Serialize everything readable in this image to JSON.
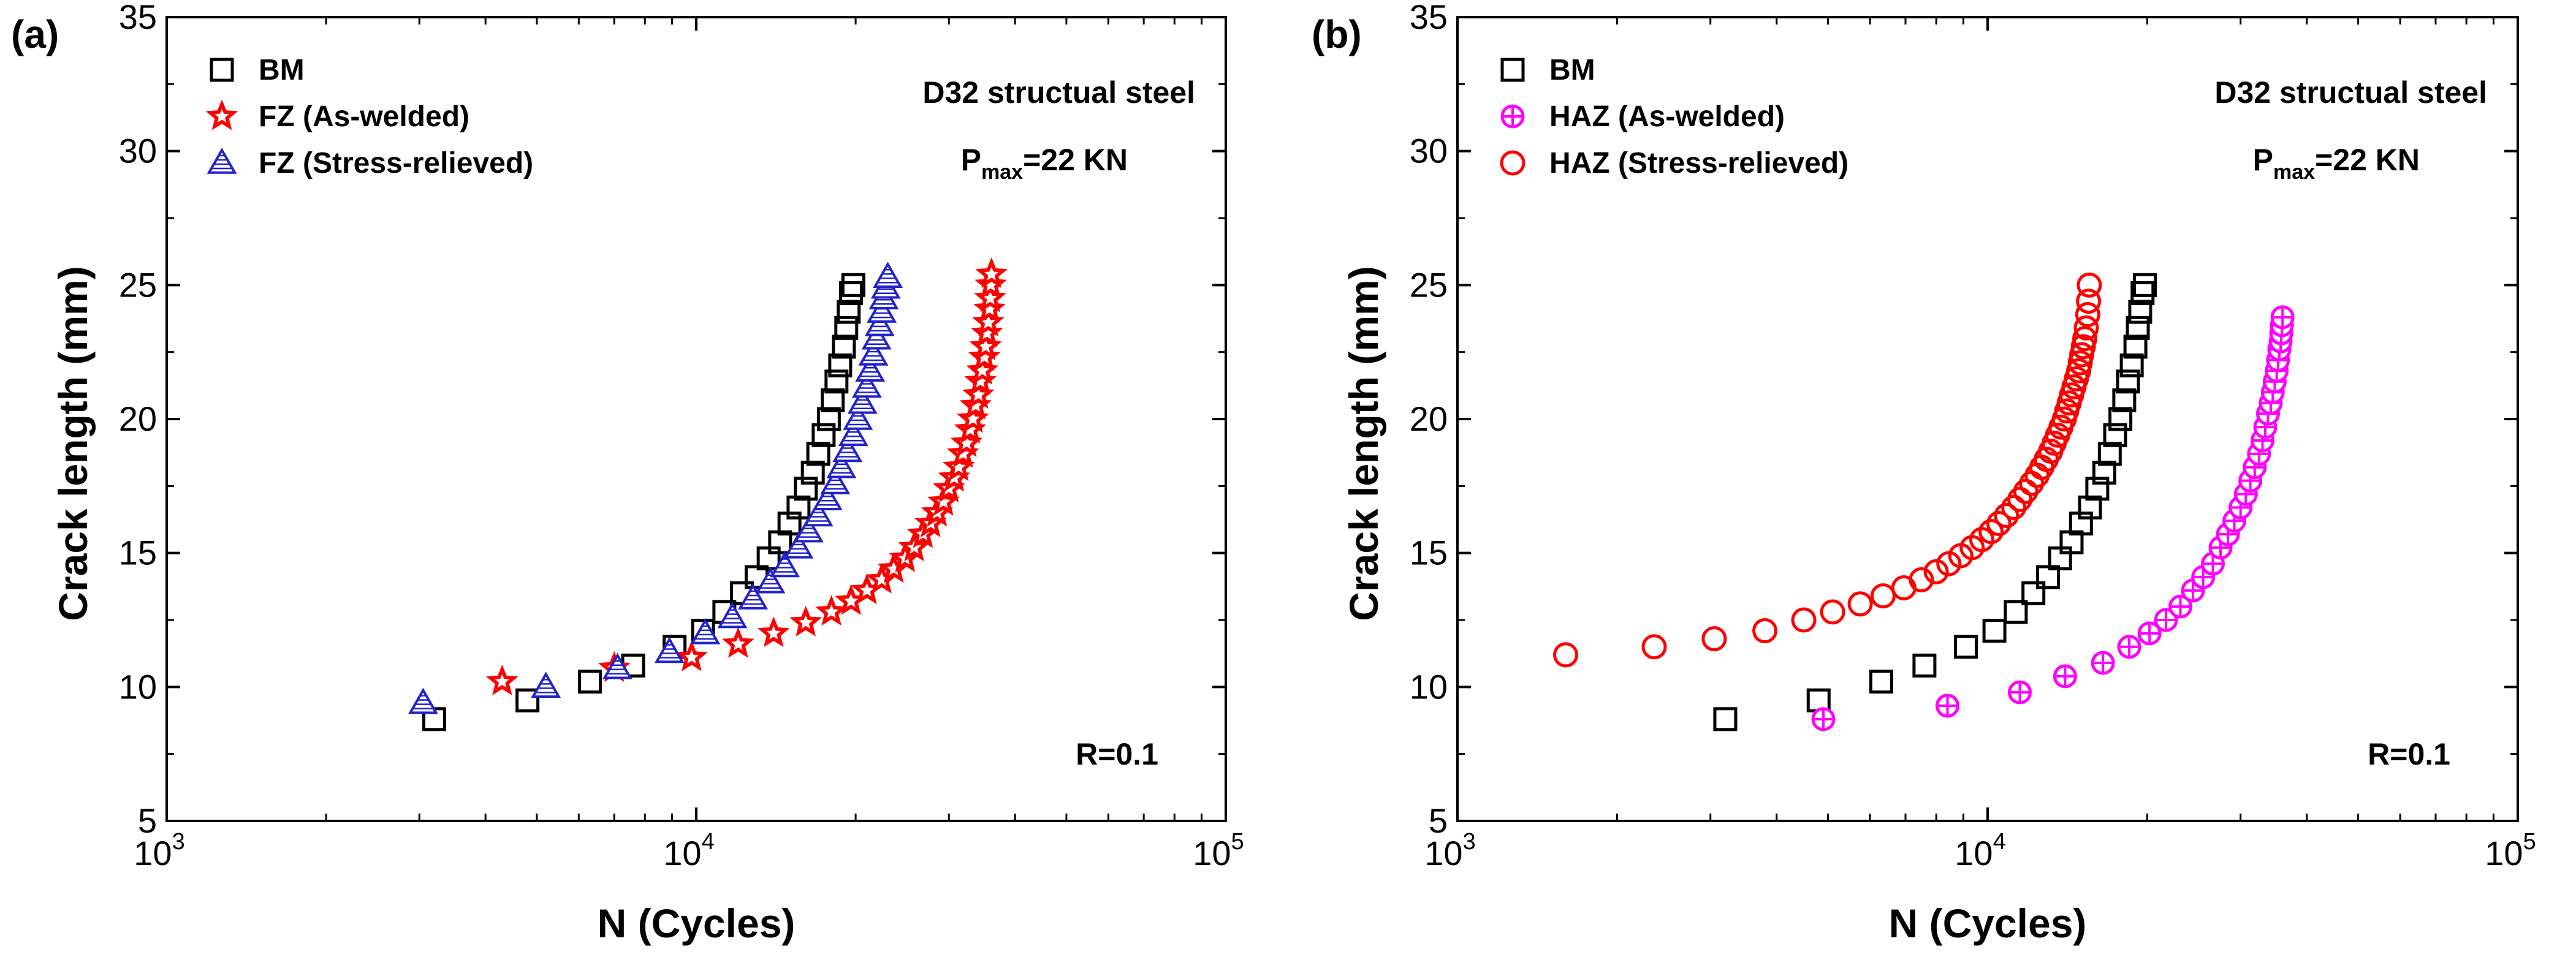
{
  "chart_data": [
    {
      "type": "scatter",
      "panel_label": "(a)",
      "xlabel": "N (Cycles)",
      "ylabel": "Crack length (mm)",
      "xscale": "log",
      "xlim": [
        1000,
        100000
      ],
      "ylim": [
        5,
        35
      ],
      "x_ticks": [
        {
          "base": "10",
          "exp": "3",
          "value": 1000
        },
        {
          "base": "10",
          "exp": "4",
          "value": 10000
        },
        {
          "base": "10",
          "exp": "5",
          "value": 100000
        }
      ],
      "y_ticks": [
        "5",
        "10",
        "15",
        "20",
        "25",
        "30",
        "35"
      ],
      "grid": false,
      "legend_position": "top-left",
      "annotations": {
        "material": "D32 structual steel",
        "pmax_main": "P",
        "pmax_sub": "max",
        "pmax_value": "=22 KN",
        "ratio": "R=0.1"
      },
      "series": [
        {
          "name": "BM",
          "marker": "square",
          "color": "#000000",
          "x": [
            3200,
            4800,
            6300,
            7600,
            9100,
            10300,
            11300,
            12200,
            13000,
            13700,
            14400,
            15000,
            15600,
            16100,
            16600,
            17000,
            17400,
            17800,
            18100,
            18400,
            18700,
            19000,
            19200,
            19400,
            19600,
            19800
          ],
          "y": [
            8.8,
            9.5,
            10.2,
            10.8,
            11.5,
            12.1,
            12.8,
            13.5,
            14.1,
            14.8,
            15.4,
            16.1,
            16.7,
            17.4,
            18.0,
            18.7,
            19.4,
            20.0,
            20.7,
            21.4,
            22.0,
            22.7,
            23.4,
            24.0,
            24.7,
            25.0
          ]
        },
        {
          "name": "FZ (As-welded)",
          "marker": "star",
          "color": "#ff0000",
          "x": [
            4300,
            7000,
            9800,
            12000,
            14000,
            16100,
            18000,
            19600,
            21000,
            22400,
            23600,
            24800,
            25800,
            26800,
            27700,
            28500,
            29300,
            30000,
            30700,
            31300,
            31900,
            32400,
            32900,
            33300,
            33700,
            34100,
            34400,
            34700,
            35000,
            35200,
            35400,
            35600,
            35800,
            35900,
            36000,
            36100
          ],
          "y": [
            10.2,
            10.7,
            11.1,
            11.6,
            12.0,
            12.4,
            12.8,
            13.2,
            13.6,
            14.0,
            14.4,
            14.8,
            15.2,
            15.7,
            16.1,
            16.5,
            16.9,
            17.4,
            17.8,
            18.2,
            18.7,
            19.1,
            19.6,
            20.0,
            20.5,
            20.9,
            21.4,
            21.8,
            22.3,
            22.7,
            23.2,
            23.6,
            24.1,
            24.5,
            25.0,
            25.4
          ]
        },
        {
          "name": "FZ (Stress-relieved)",
          "marker": "triangle",
          "color": "#2222cc",
          "x": [
            3050,
            5200,
            7100,
            8900,
            10400,
            11700,
            12800,
            13800,
            14700,
            15600,
            16300,
            17000,
            17700,
            18300,
            18800,
            19300,
            19800,
            20200,
            20600,
            21000,
            21300,
            21600,
            21900,
            22200,
            22400,
            22600,
            22800,
            23000
          ],
          "y": [
            9.4,
            10.0,
            10.7,
            11.3,
            12.0,
            12.6,
            13.3,
            13.9,
            14.5,
            15.2,
            15.8,
            16.4,
            17.0,
            17.6,
            18.2,
            18.8,
            19.4,
            20.0,
            20.6,
            21.2,
            21.8,
            22.4,
            23.0,
            23.5,
            24.0,
            24.5,
            24.9,
            25.3
          ]
        }
      ]
    },
    {
      "type": "scatter",
      "panel_label": "(b)",
      "xlabel": "N (Cycles)",
      "ylabel": "Crack length (mm)",
      "xscale": "log",
      "xlim": [
        1000,
        100000
      ],
      "ylim": [
        5,
        35
      ],
      "x_ticks": [
        {
          "base": "10",
          "exp": "3",
          "value": 1000
        },
        {
          "base": "10",
          "exp": "4",
          "value": 10000
        },
        {
          "base": "10",
          "exp": "5",
          "value": 100000
        }
      ],
      "y_ticks": [
        "5",
        "10",
        "15",
        "20",
        "25",
        "30",
        "35"
      ],
      "grid": false,
      "legend_position": "top-left",
      "annotations": {
        "material": "D32 structual steel",
        "pmax_main": "P",
        "pmax_sub": "max",
        "pmax_value": "=22 KN",
        "ratio": "R=0.1"
      },
      "series": [
        {
          "name": "BM",
          "marker": "square",
          "color": "#000000",
          "x": [
            3200,
            4800,
            6300,
            7600,
            9100,
            10300,
            11300,
            12200,
            13000,
            13700,
            14400,
            15000,
            15600,
            16100,
            16600,
            17000,
            17400,
            17800,
            18100,
            18400,
            18700,
            19000,
            19200,
            19400,
            19600,
            19800
          ],
          "y": [
            8.8,
            9.5,
            10.2,
            10.8,
            11.5,
            12.1,
            12.8,
            13.5,
            14.1,
            14.8,
            15.4,
            16.1,
            16.7,
            17.4,
            18.0,
            18.7,
            19.4,
            20.0,
            20.7,
            21.4,
            22.0,
            22.7,
            23.4,
            24.0,
            24.7,
            25.0
          ]
        },
        {
          "name": "HAZ (As-welded)",
          "marker": "circle-plus",
          "color": "#ff00ff",
          "x": [
            4900,
            8400,
            11500,
            14000,
            16500,
            18500,
            20200,
            21700,
            23100,
            24400,
            25500,
            26600,
            27500,
            28400,
            29200,
            30000,
            30700,
            31300,
            31900,
            32500,
            33000,
            33400,
            33800,
            34200,
            34500,
            34800,
            35100,
            35300,
            35500,
            35700,
            35800,
            35900,
            36000
          ],
          "y": [
            8.8,
            9.3,
            9.8,
            10.4,
            10.9,
            11.5,
            12.0,
            12.5,
            13.0,
            13.6,
            14.1,
            14.6,
            15.2,
            15.7,
            16.2,
            16.7,
            17.2,
            17.7,
            18.2,
            18.7,
            19.2,
            19.7,
            20.2,
            20.6,
            21.0,
            21.4,
            21.8,
            22.2,
            22.6,
            22.9,
            23.2,
            23.5,
            23.8
          ]
        },
        {
          "name": "HAZ (Stress-relieved)",
          "marker": "circle",
          "color": "#ff0000",
          "x": [
            1600,
            2350,
            3050,
            3800,
            4500,
            5100,
            5750,
            6350,
            6950,
            7500,
            8000,
            8450,
            8900,
            9350,
            9750,
            10150,
            10500,
            10850,
            11200,
            11500,
            11800,
            12100,
            12400,
            12650,
            12900,
            13150,
            13350,
            13550,
            13750,
            13950,
            14100,
            14250,
            14400,
            14550,
            14700,
            14850,
            14950,
            15050,
            15150,
            15250,
            15350,
            15450,
            15500,
            15550
          ],
          "y": [
            11.2,
            11.5,
            11.8,
            12.1,
            12.5,
            12.8,
            13.1,
            13.4,
            13.7,
            14.0,
            14.3,
            14.6,
            14.9,
            15.2,
            15.5,
            15.8,
            16.1,
            16.4,
            16.7,
            17.0,
            17.3,
            17.6,
            17.9,
            18.2,
            18.5,
            18.8,
            19.1,
            19.4,
            19.7,
            20.0,
            20.3,
            20.6,
            20.9,
            21.2,
            21.5,
            21.8,
            22.1,
            22.4,
            22.7,
            23.0,
            23.4,
            23.9,
            24.4,
            25.0
          ]
        }
      ]
    }
  ]
}
